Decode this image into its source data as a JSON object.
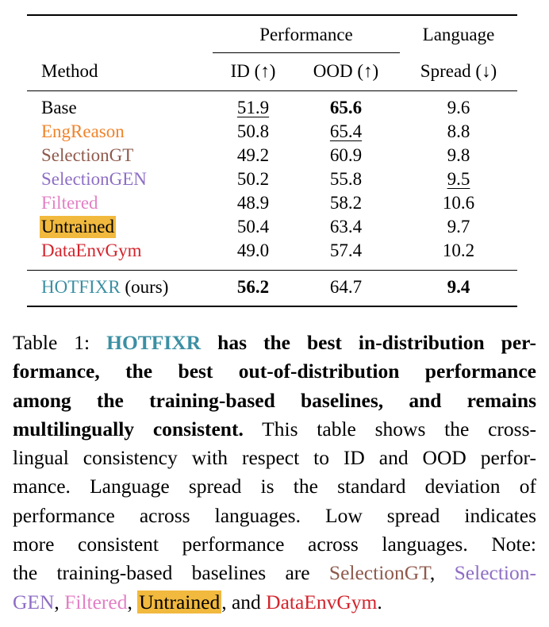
{
  "table": {
    "headers": {
      "method": "Method",
      "performance_group": "Performance",
      "id": "ID (↑)",
      "ood": "OOD (↑)",
      "language_top": "Language",
      "language_bottom": "Spread (↓)"
    },
    "rows": [
      {
        "method": "Base",
        "color": "#000000",
        "id": "51.9",
        "ood": "65.6",
        "spread": "9.6"
      },
      {
        "method": "EngReason",
        "color": "#f0832a",
        "id": "50.8",
        "ood": "65.4",
        "spread": "8.8"
      },
      {
        "method": "SelectionGT",
        "color": "#8f5a4c",
        "id": "49.2",
        "ood": "60.9",
        "spread": "9.8"
      },
      {
        "method": "SelectionGEN",
        "color": "#8e6ec5",
        "id": "50.2",
        "ood": "55.8",
        "spread": "9.5"
      },
      {
        "method": "Filtered",
        "color": "#e37fc5",
        "id": "48.9",
        "ood": "58.2",
        "spread": "10.6"
      },
      {
        "method": "Untrained",
        "color": "#000000",
        "highlight": "#f1b93e",
        "id": "50.4",
        "ood": "63.4",
        "spread": "9.7"
      },
      {
        "method": "DataEnvGym",
        "color": "#d3242c",
        "id": "49.0",
        "ood": "57.4",
        "spread": "10.2"
      }
    ],
    "ours": {
      "method": "HOTFIXR",
      "suffix": "(ours)",
      "color": "#3b8fa3",
      "id": "56.2",
      "ood": "64.7",
      "spread": "9.4"
    }
  },
  "caption": {
    "label": "Table 1: ",
    "name": "HOTFIXR",
    "bold_l1": " has the best in-distribution per-",
    "bold_l2": "formance, the best out-of-distribution performance",
    "bold_l3": "among the training-based baselines, and remains",
    "bold_l4": "multilingually consistent.",
    "l4_rest": " This table shows the cross-",
    "l5": "lingual consistency with respect to ID and OOD perfor-",
    "l6": "mance. Language spread is the standard deviation of",
    "l7": "performance across languages. Low spread indicates",
    "l8": "more consistent performance across languages. Note:",
    "l9_pre": "the training-based baselines are ",
    "l9_sel_gt": "SelectionGT",
    "l9_comma": ", ",
    "l9_sel_gen_a": "Selection-",
    "l10_sel_gen_b": "GEN",
    "l10_c1": ", ",
    "l10_filtered": "Filtered",
    "l10_c2": ", ",
    "l10_untrained": "Untrained",
    "l10_and": ", and ",
    "l10_dataenv": "DataEnvGym",
    "l10_end": "."
  }
}
